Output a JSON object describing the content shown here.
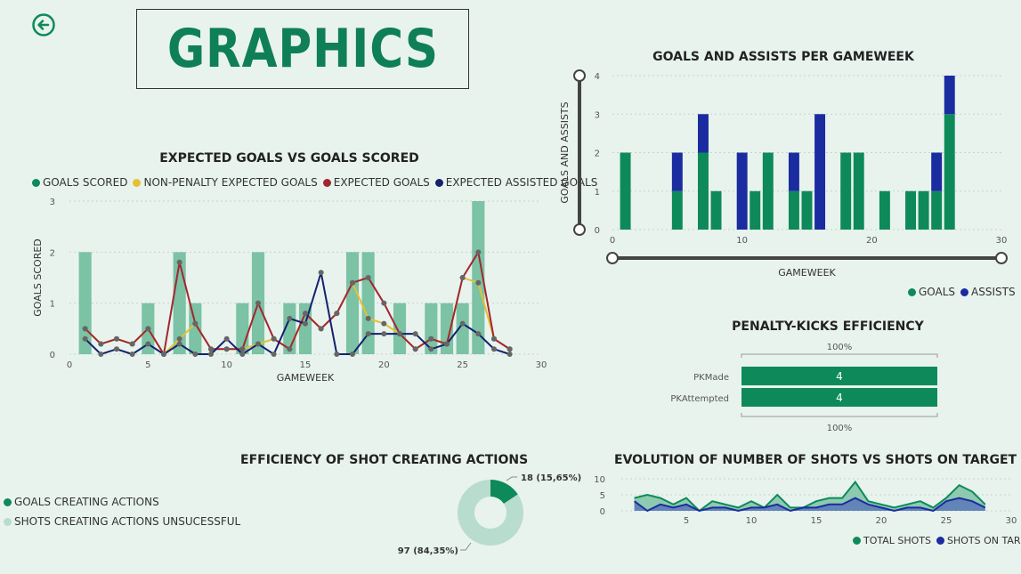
{
  "header": {
    "title": "GRAPHICS"
  },
  "colors": {
    "goals": "#0e8a5a",
    "goals_bar_light": "#7cc2a5",
    "npxg": "#e2c230",
    "xg": "#a3262f",
    "xag": "#13216e",
    "assists": "#1a2ca0",
    "shots_fill": "#7cc2a5",
    "shots_on_target_fill": "#5a78b8",
    "donut_light": "#b8dccd"
  },
  "chart_data": [
    {
      "type": "bar",
      "id": "xg_chart",
      "title": "EXPECTED GOALS VS GOALS SCORED",
      "xlabel": "GAMEWEEK",
      "ylabel": "GOALS SCORED",
      "xlim": [
        0,
        30
      ],
      "ylim": [
        0,
        3
      ],
      "xticks": [
        0,
        5,
        10,
        15,
        20,
        25,
        30
      ],
      "yticks": [
        0,
        1,
        2,
        3
      ],
      "legend_position": "top",
      "legend": [
        "GOALS SCORED",
        "NON-PENALTY EXPECTED GOALS",
        "EXPECTED GOALS",
        "EXPECTED ASSISTED GOALS"
      ],
      "bars": {
        "name": "GOALS SCORED",
        "x": [
          1,
          5,
          7,
          8,
          11,
          12,
          14,
          15,
          18,
          19,
          21,
          23,
          24,
          25,
          26
        ],
        "values": [
          2,
          1,
          2,
          1,
          1,
          2,
          1,
          1,
          2,
          2,
          1,
          1,
          1,
          1,
          3
        ]
      },
      "series": [
        {
          "name": "NON-PENALTY EXPECTED GOALS",
          "x": [
            1,
            2,
            3,
            4,
            5,
            6,
            7,
            8,
            9,
            10,
            11,
            12,
            13,
            14,
            15,
            16,
            17,
            18,
            19,
            20,
            21,
            22,
            23,
            24,
            25,
            26,
            27,
            28
          ],
          "values": [
            0.5,
            0.2,
            0.3,
            0.2,
            0.5,
            0.0,
            0.3,
            0.6,
            0.1,
            0.1,
            0.1,
            0.2,
            0.3,
            0.1,
            0.8,
            0.5,
            0.8,
            1.4,
            0.7,
            0.6,
            0.4,
            0.1,
            0.3,
            0.2,
            1.5,
            1.4,
            0.3,
            0.1
          ]
        },
        {
          "name": "EXPECTED GOALS",
          "x": [
            1,
            2,
            3,
            4,
            5,
            6,
            7,
            8,
            9,
            10,
            11,
            12,
            13,
            14,
            15,
            16,
            17,
            18,
            19,
            20,
            21,
            22,
            23,
            24,
            25,
            26,
            27,
            28
          ],
          "values": [
            0.5,
            0.2,
            0.3,
            0.2,
            0.5,
            0.0,
            1.8,
            0.6,
            0.1,
            0.1,
            0.1,
            1.0,
            0.3,
            0.1,
            0.8,
            0.5,
            0.8,
            1.4,
            1.5,
            1.0,
            0.4,
            0.1,
            0.3,
            0.2,
            1.5,
            2.0,
            0.3,
            0.1
          ]
        },
        {
          "name": "EXPECTED ASSISTED GOALS",
          "x": [
            1,
            2,
            3,
            4,
            5,
            6,
            7,
            8,
            9,
            10,
            11,
            12,
            13,
            14,
            15,
            16,
            17,
            18,
            19,
            20,
            21,
            22,
            23,
            24,
            25,
            26,
            27,
            28
          ],
          "values": [
            0.3,
            0.0,
            0.1,
            0.0,
            0.2,
            0.0,
            0.2,
            0.0,
            0.0,
            0.3,
            0.0,
            0.2,
            0.0,
            0.7,
            0.6,
            1.6,
            0.0,
            0.0,
            0.4,
            0.4,
            0.4,
            0.4,
            0.1,
            0.2,
            0.6,
            0.4,
            0.1,
            0.0
          ]
        }
      ]
    },
    {
      "type": "bar",
      "id": "ga_chart",
      "title": "GOALS AND ASSISTS PER GAMEWEEK",
      "xlabel": "GAMEWEEK",
      "ylabel": "GOALS AND ASSISTS",
      "xlim": [
        0,
        30
      ],
      "ylim": [
        0,
        4
      ],
      "xticks": [
        0,
        10,
        20,
        30
      ],
      "yticks": [
        0,
        1,
        2,
        3,
        4
      ],
      "legend_position": "bottom-right",
      "categories": [
        1,
        5,
        7,
        8,
        10,
        11,
        12,
        14,
        15,
        16,
        18,
        19,
        21,
        23,
        24,
        25,
        26
      ],
      "series": [
        {
          "name": "GOALS",
          "values": [
            2,
            1,
            2,
            1,
            0,
            1,
            2,
            1,
            1,
            0,
            2,
            2,
            1,
            1,
            1,
            1,
            3
          ]
        },
        {
          "name": "ASSISTS",
          "values": [
            0,
            1,
            1,
            0,
            2,
            0,
            0,
            1,
            0,
            3,
            0,
            0,
            0,
            0,
            0,
            1,
            1
          ]
        }
      ]
    },
    {
      "type": "bar",
      "id": "pk_chart",
      "title": "PENALTY-KICKS EFFICIENCY",
      "categories": [
        "PKMade",
        "PKAttempted"
      ],
      "values": [
        4,
        4
      ],
      "top_label": "100%",
      "bottom_label": "100%"
    },
    {
      "type": "pie",
      "id": "sca_chart",
      "title": "EFFICIENCY OF SHOT CREATING ACTIONS",
      "legend_position": "left",
      "slices": [
        {
          "name": "GOALS CREATING ACTIONS",
          "value": 18,
          "label": "18 (15,65%)"
        },
        {
          "name": "SHOTS CREATING ACTIONS UNSUCESSFUL",
          "value": 97,
          "label": "97 (84,35%)"
        }
      ]
    },
    {
      "type": "area",
      "id": "shots_chart",
      "title": "EVOLUTION OF NUMBER OF SHOTS VS SHOTS ON TARGET",
      "xlim": [
        0,
        30
      ],
      "ylim": [
        0,
        10
      ],
      "xticks": [
        5,
        10,
        15,
        20,
        25,
        30
      ],
      "yticks": [
        0,
        5,
        10
      ],
      "legend_position": "bottom-right",
      "x": [
        1,
        2,
        3,
        4,
        5,
        6,
        7,
        8,
        9,
        10,
        11,
        12,
        13,
        14,
        15,
        16,
        17,
        18,
        19,
        20,
        21,
        22,
        23,
        24,
        25,
        26,
        27,
        28
      ],
      "series": [
        {
          "name": "TOTAL SHOTS",
          "values": [
            4,
            5,
            4,
            2,
            4,
            0,
            3,
            2,
            1,
            3,
            1,
            5,
            1,
            1,
            3,
            4,
            4,
            9,
            3,
            2,
            1,
            2,
            3,
            1,
            4,
            8,
            6,
            2
          ]
        },
        {
          "name": "SHOTS ON TARGET",
          "values": [
            3,
            0,
            2,
            1,
            2,
            0,
            1,
            1,
            0,
            1,
            1,
            2,
            0,
            1,
            1,
            2,
            2,
            4,
            2,
            1,
            0,
            1,
            1,
            0,
            3,
            4,
            3,
            1
          ]
        }
      ]
    }
  ]
}
